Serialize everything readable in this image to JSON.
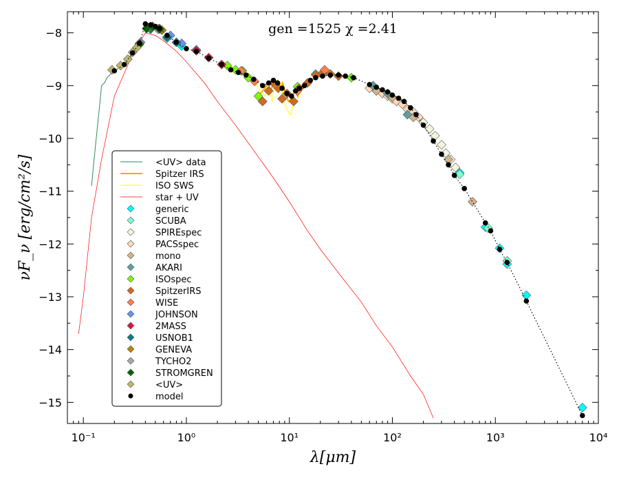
{
  "chart_data": {
    "type": "scatter",
    "title": "",
    "annotation": "gen =1525 χ =2.41",
    "xlabel": "λ[μm]",
    "ylabel": "νF_ν [erg/cm²/s]",
    "xscale": "log",
    "xlim": [
      0.07,
      10000
    ],
    "ylim": [
      -15.4,
      -7.6
    ],
    "x_ticks": [
      0.1,
      1,
      10,
      100,
      1000,
      10000
    ],
    "x_tick_labels": [
      "10⁻¹",
      "10⁰",
      "10¹",
      "10²",
      "10³",
      "10⁴"
    ],
    "y_ticks": [
      -8,
      -9,
      -10,
      -11,
      -12,
      -13,
      -14,
      -15
    ],
    "y_tick_labels": [
      "−8",
      "−9",
      "−10",
      "−11",
      "−12",
      "−13",
      "−14",
      "−15"
    ],
    "legend_position": "lower-left",
    "series": [
      {
        "name": "<UV> data",
        "kind": "line",
        "color": "#2e8b57",
        "x": [
          0.12,
          0.13,
          0.14,
          0.145,
          0.15,
          0.16,
          0.17,
          0.18,
          0.19,
          0.2
        ],
        "y": [
          -10.9,
          -10.2,
          -9.6,
          -9.3,
          -9.0,
          -8.95,
          -8.85,
          -8.8,
          -8.75,
          -8.72
        ]
      },
      {
        "name": "Spitzer IRS",
        "kind": "line",
        "color": "#ffa500",
        "x": [
          5.2,
          5.8,
          6.2,
          6.6,
          7.0,
          7.7,
          8.3,
          8.6,
          9.2,
          9.8,
          10.5,
          11.3,
          12,
          13,
          14,
          15,
          16,
          17,
          18,
          20,
          23,
          26,
          30,
          35
        ],
        "y": [
          -9.15,
          -9.05,
          -8.95,
          -9.1,
          -8.95,
          -8.9,
          -9.05,
          -8.95,
          -9.15,
          -9.3,
          -9.25,
          -9.1,
          -9.2,
          -9.05,
          -8.95,
          -9.0,
          -8.9,
          -8.88,
          -8.85,
          -8.82,
          -8.8,
          -8.78,
          -8.8,
          -8.82
        ]
      },
      {
        "name": "ISO SWS",
        "kind": "line",
        "color": "#ffff00",
        "x": [
          2.4,
          2.8,
          3.3,
          3.8,
          4.3,
          4.8,
          5.3,
          5.8,
          6.2,
          6.8,
          7.3,
          7.8,
          8.3,
          8.8,
          9.3,
          9.8,
          10.3,
          10.8,
          11.3,
          12,
          13,
          14,
          16,
          18,
          21,
          25,
          30,
          36,
          42
        ],
        "y": [
          -8.6,
          -8.65,
          -8.7,
          -8.8,
          -8.9,
          -9.0,
          -9.1,
          -9.2,
          -8.95,
          -9.3,
          -8.9,
          -9.15,
          -8.95,
          -9.3,
          -9.4,
          -9.5,
          -9.55,
          -9.4,
          -9.35,
          -9.25,
          -9.1,
          -9.0,
          -8.95,
          -8.85,
          -8.8,
          -8.78,
          -8.8,
          -8.83,
          -8.85
        ]
      },
      {
        "name": "star + UV",
        "kind": "line",
        "color": "#ff0000",
        "x": [
          0.09,
          0.1,
          0.12,
          0.15,
          0.2,
          0.3,
          0.4,
          0.5,
          0.6,
          0.8,
          1,
          1.5,
          2,
          3,
          5,
          7,
          10,
          15,
          20,
          30,
          50,
          70,
          100,
          150,
          200,
          250
        ],
        "y": [
          -13.7,
          -13.0,
          -11.5,
          -10.4,
          -9.2,
          -8.4,
          -8.0,
          -8.05,
          -8.15,
          -8.35,
          -8.55,
          -8.95,
          -9.3,
          -9.75,
          -10.35,
          -10.75,
          -11.2,
          -11.75,
          -12.1,
          -12.55,
          -13.1,
          -13.55,
          -13.95,
          -14.5,
          -14.85,
          -15.3
        ]
      },
      {
        "name": "generic",
        "kind": "marker",
        "color": "#00ffff",
        "x": [
          0.65,
          0.9,
          18,
          800,
          1100,
          1300,
          2000,
          7000,
          450
        ],
        "y": [
          -8.1,
          -8.25,
          -8.78,
          -11.68,
          -12.08,
          -12.38,
          -12.97,
          -15.1,
          -10.65
        ]
      },
      {
        "name": "SCUBA",
        "kind": "marker",
        "color": "#7fffd4",
        "x": [
          450,
          850,
          1300
        ],
        "y": [
          -10.68,
          -11.7,
          -12.32
        ]
      },
      {
        "name": "SPIREspec",
        "kind": "marker",
        "color": "#f5f5dc",
        "x": [
          200,
          230,
          260,
          300,
          330,
          370,
          410
        ],
        "y": [
          -9.7,
          -9.82,
          -9.95,
          -10.12,
          -10.28,
          -10.4,
          -10.55
        ]
      },
      {
        "name": "PACSspec",
        "kind": "marker",
        "color": "#ffdab9",
        "x": [
          60,
          70,
          80,
          90,
          100,
          110,
          125,
          140,
          160,
          180
        ],
        "y": [
          -9.05,
          -9.1,
          -9.15,
          -9.2,
          -9.25,
          -9.3,
          -9.35,
          -9.45,
          -9.5,
          -9.6
        ]
      },
      {
        "name": "mono",
        "kind": "marker",
        "color": "#d2b48c",
        "x": [
          70,
          100,
          160,
          350,
          600
        ],
        "y": [
          -9.1,
          -9.22,
          -9.6,
          -10.4,
          -11.2
        ]
      },
      {
        "name": "AKARI",
        "kind": "marker",
        "color": "#5f9ea0",
        "x": [
          65,
          90,
          140
        ],
        "y": [
          -9.0,
          -9.15,
          -9.55
        ]
      },
      {
        "name": "ISOspec",
        "kind": "marker",
        "color": "#7cfc00",
        "x": [
          2.5,
          3.0,
          3.5,
          4.0,
          5.0,
          12.0,
          40
        ],
        "y": [
          -8.62,
          -8.7,
          -8.72,
          -8.85,
          -9.2,
          -9.02,
          -8.85
        ]
      },
      {
        "name": "SpitzerIRS",
        "kind": "marker",
        "color": "#d2691e",
        "x": [
          5.5,
          6.3,
          7.0,
          7.8,
          8.5,
          9.5,
          11,
          12.5,
          15,
          18,
          21,
          25,
          30
        ],
        "y": [
          -9.3,
          -9.1,
          -8.95,
          -9.05,
          -9.25,
          -9.15,
          -9.3,
          -9.05,
          -8.95,
          -8.8,
          -8.76,
          -8.78,
          -8.82
        ]
      },
      {
        "name": "WISE",
        "kind": "marker",
        "color": "#ff7f50",
        "x": [
          3.4,
          4.6,
          12,
          22
        ],
        "y": [
          -8.72,
          -8.92,
          -9.1,
          -8.7
        ]
      },
      {
        "name": "JOHNSON",
        "kind": "marker",
        "color": "#6495ed",
        "x": [
          0.36,
          0.44,
          0.55,
          0.7,
          0.9,
          1.25
        ],
        "y": [
          -8.18,
          -7.9,
          -7.92,
          -8.05,
          -8.2,
          -8.32
        ]
      },
      {
        "name": "2MASS",
        "kind": "marker",
        "color": "#dc143c",
        "x": [
          1.25,
          1.65,
          2.2
        ],
        "y": [
          -8.34,
          -8.47,
          -8.6
        ]
      },
      {
        "name": "USNOB1",
        "kind": "marker",
        "color": "#008080",
        "x": [
          0.45,
          0.65,
          0.8
        ],
        "y": [
          -7.93,
          -8.08,
          -8.18
        ]
      },
      {
        "name": "GENEVA",
        "kind": "marker",
        "color": "#b8860b",
        "x": [
          0.35,
          0.42,
          0.45,
          0.54,
          0.58
        ],
        "y": [
          -8.2,
          -7.9,
          -7.88,
          -7.92,
          -7.95
        ]
      },
      {
        "name": "TYCHO2",
        "kind": "marker",
        "color": "#a9a9a9",
        "x": [
          0.43,
          0.53
        ],
        "y": [
          -7.9,
          -7.93
        ]
      },
      {
        "name": "STROMGREN",
        "kind": "marker",
        "color": "#006400",
        "x": [
          0.35,
          0.41,
          0.47,
          0.55
        ],
        "y": [
          -8.22,
          -7.92,
          -7.88,
          -7.93
        ]
      },
      {
        "name": "<UV>",
        "kind": "marker",
        "color": "#bdb76b",
        "x": [
          0.19,
          0.23,
          0.27,
          0.3,
          0.33
        ],
        "y": [
          -8.7,
          -8.62,
          -8.5,
          -8.37,
          -8.28
        ]
      },
      {
        "name": "model",
        "kind": "model",
        "color": "#000000",
        "x": [
          0.2,
          0.25,
          0.3,
          0.35,
          0.4,
          0.45,
          0.5,
          0.55,
          0.65,
          0.8,
          1.0,
          1.25,
          1.65,
          2.2,
          2.7,
          3.2,
          3.8,
          4.5,
          5.5,
          6.3,
          7.0,
          7.7,
          8.5,
          9.5,
          10.5,
          11.5,
          12.5,
          14,
          16,
          18,
          21,
          25,
          30,
          35,
          42,
          60,
          70,
          80,
          90,
          100,
          115,
          130,
          150,
          170,
          200,
          250,
          300,
          350,
          400,
          500,
          800,
          900,
          1100,
          1300,
          2000,
          7000
        ],
        "y": [
          -8.72,
          -8.6,
          -8.38,
          -8.2,
          -7.83,
          -7.85,
          -7.88,
          -7.92,
          -8.05,
          -8.18,
          -8.3,
          -8.35,
          -8.48,
          -8.6,
          -8.7,
          -8.75,
          -8.8,
          -8.88,
          -9.0,
          -8.95,
          -8.9,
          -8.95,
          -9.05,
          -9.15,
          -9.2,
          -9.1,
          -9.05,
          -9.0,
          -8.9,
          -8.85,
          -8.82,
          -8.8,
          -8.8,
          -8.82,
          -8.85,
          -8.98,
          -9.03,
          -9.08,
          -9.12,
          -9.18,
          -9.24,
          -9.3,
          -9.42,
          -9.55,
          -9.75,
          -10.05,
          -10.3,
          -10.5,
          -10.7,
          -10.95,
          -11.6,
          -11.75,
          -12.1,
          -12.35,
          -13.08,
          -15.25
        ]
      }
    ]
  }
}
